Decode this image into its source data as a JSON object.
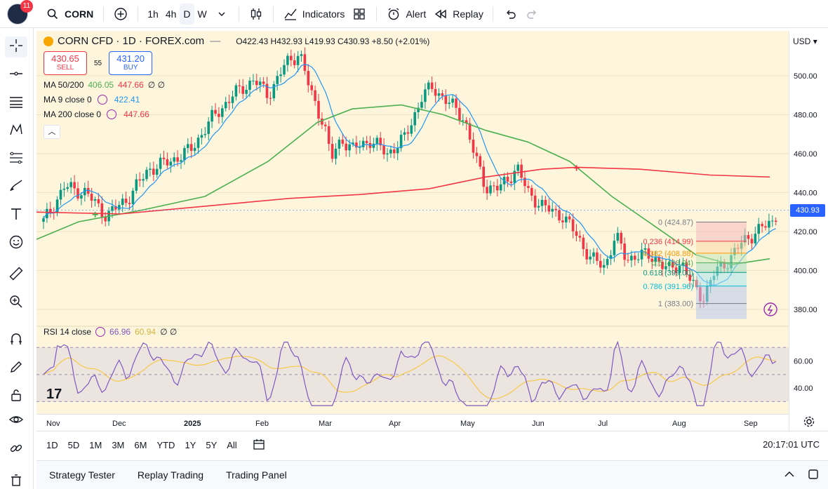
{
  "header": {
    "notification_count": "11",
    "symbol": "CORN",
    "intervals": [
      "1h",
      "4h",
      "D",
      "W"
    ],
    "active_interval": "D",
    "indicators_label": "Indicators",
    "alert_label": "Alert",
    "replay_label": "Replay"
  },
  "legend": {
    "title": "CORN CFD · 1D · FOREX.com",
    "ohlc": "O422.43 H432.93 L419.93 C430.93 +8.50 (+2.01%)",
    "sell_price": "430.65",
    "sell_label": "SELL",
    "spread": "55",
    "buy_price": "431.20",
    "buy_label": "BUY",
    "indicators": [
      {
        "name": "MA 50/200",
        "v1": "406.05",
        "v2": "447.66",
        "extra": "∅ ∅",
        "c1": "#4caf50",
        "c2": "#f23645"
      },
      {
        "name": "MA 9 close 0",
        "v1": "422.41",
        "c1": "#2196f3"
      },
      {
        "name": "MA 200 close 0",
        "v1": "447.66",
        "c1": "#f23645"
      }
    ]
  },
  "rsi": {
    "label": "RSI 14 close",
    "value": "66.96",
    "ma_value": "60.94",
    "extra": "∅ ∅",
    "levels": [
      "60.00",
      "40.00"
    ]
  },
  "price_axis": {
    "currency": "USD",
    "ticks": [
      "500.00",
      "480.00",
      "460.00",
      "440.00",
      "420.00",
      "400.00",
      "380.00"
    ],
    "last_price": "430.93"
  },
  "time_axis": {
    "ticks": [
      "Nov",
      "Dec",
      "2025",
      "Feb",
      "Mar",
      "Apr",
      "May",
      "Jun",
      "Jul",
      "Aug",
      "Sep"
    ]
  },
  "fib": {
    "levels": [
      {
        "label": "0 (424.87)",
        "color": "#787b86"
      },
      {
        "label": "0.236 (414.99)",
        "color": "#f23645"
      },
      {
        "label": "0.382 (408.88)",
        "color": "#ff9800"
      },
      {
        "label": "0.5 (403.94)",
        "color": "#4caf50"
      },
      {
        "label": "0.618 (399.00)",
        "color": "#089981"
      },
      {
        "label": "0.786 (391.96)",
        "color": "#00bcd4"
      },
      {
        "label": "1 (383.00)",
        "color": "#787b86"
      }
    ]
  },
  "range_bar": {
    "ranges": [
      "1D",
      "5D",
      "1M",
      "3M",
      "6M",
      "YTD",
      "1Y",
      "5Y",
      "All"
    ],
    "clock": "20:17:01 UTC"
  },
  "bottom_panel": {
    "tabs": [
      "Strategy Tester",
      "Replay Trading",
      "Trading Panel"
    ]
  },
  "colors": {
    "up": "#089981",
    "down": "#f23645",
    "ma9": "#2196f3",
    "ma50": "#4caf50",
    "ma200": "#f23645",
    "rsi": "#7e57c2",
    "rsi_ma": "#f7c948",
    "bg": "#fdf6dc"
  }
}
